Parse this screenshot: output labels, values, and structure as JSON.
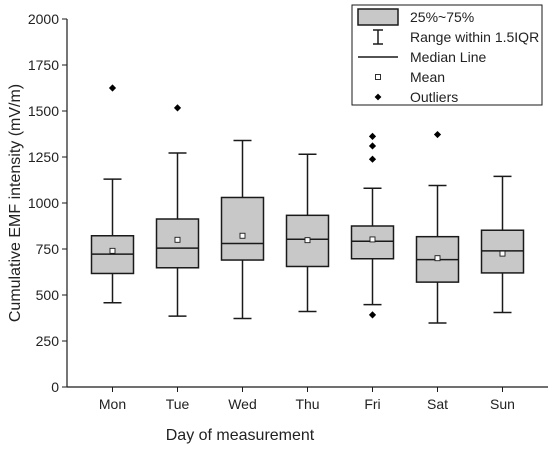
{
  "chart_data": {
    "type": "box",
    "xlabel": "Day of measurement",
    "ylabel": "Cumulative EMF intensity (mV/m)",
    "ylim": [
      0,
      2000
    ],
    "yticks": [
      0,
      250,
      500,
      750,
      1000,
      1250,
      1500,
      1750,
      2000
    ],
    "grid": false,
    "legend_position": "top-right",
    "categories": [
      "Mon",
      "Tue",
      "Wed",
      "Thu",
      "Fri",
      "Sat",
      "Sun"
    ],
    "boxes": [
      {
        "category": "Mon",
        "whisker_low": 458,
        "q1": 617,
        "median": 722,
        "q3": 822,
        "whisker_high": 1130,
        "mean": 740,
        "outliers": [
          1625
        ]
      },
      {
        "category": "Tue",
        "whisker_low": 385,
        "q1": 648,
        "median": 755,
        "q3": 913,
        "whisker_high": 1272,
        "mean": 800,
        "outliers": [
          1517
        ]
      },
      {
        "category": "Wed",
        "whisker_low": 372,
        "q1": 690,
        "median": 780,
        "q3": 1030,
        "whisker_high": 1340,
        "mean": 822,
        "outliers": []
      },
      {
        "category": "Thu",
        "whisker_low": 410,
        "q1": 655,
        "median": 803,
        "q3": 933,
        "whisker_high": 1265,
        "mean": 798,
        "outliers": []
      },
      {
        "category": "Fri",
        "whisker_low": 448,
        "q1": 697,
        "median": 792,
        "q3": 875,
        "whisker_high": 1080,
        "mean": 802,
        "outliers": [
          1362,
          1310,
          1238,
          392
        ]
      },
      {
        "category": "Sat",
        "whisker_low": 348,
        "q1": 570,
        "median": 692,
        "q3": 817,
        "whisker_high": 1095,
        "mean": 700,
        "outliers": [
          1372
        ]
      },
      {
        "category": "Sun",
        "whisker_low": 405,
        "q1": 620,
        "median": 740,
        "q3": 852,
        "whisker_high": 1145,
        "mean": 725,
        "outliers": []
      }
    ],
    "legend": [
      {
        "key": "box",
        "label": "25%~75%"
      },
      {
        "key": "range",
        "label": "Range within 1.5IQR"
      },
      {
        "key": "median",
        "label": "Median Line"
      },
      {
        "key": "mean",
        "label": "Mean"
      },
      {
        "key": "outliers",
        "label": "Outliers"
      }
    ],
    "colors": {
      "box_fill": "#c8c8c8",
      "stroke": "#1a1a1a",
      "outlier": "#000000"
    }
  }
}
